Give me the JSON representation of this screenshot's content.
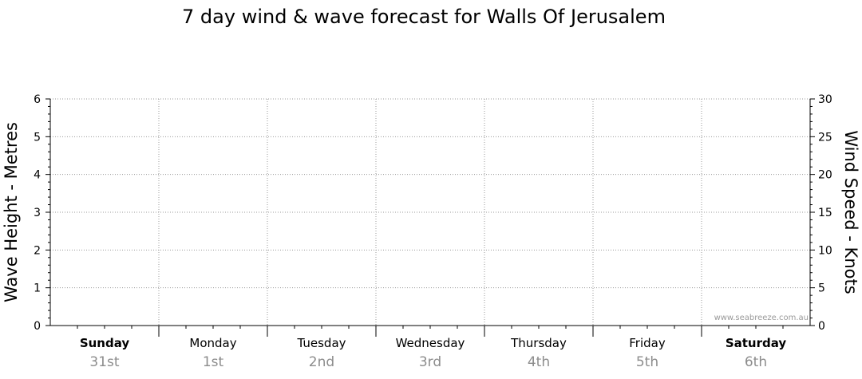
{
  "chart_data": {
    "type": "line",
    "title": "7 day wind & wave forecast for Walls Of Jerusalem",
    "ylabel_left": "Wave Height - Metres",
    "ylabel_right": "Wind Speed - Knots",
    "ylim_left": [
      0,
      6
    ],
    "ylim_right": [
      0,
      30
    ],
    "yticks_left": [
      "0",
      "1",
      "2",
      "3",
      "4",
      "5",
      "6"
    ],
    "yticks_right": [
      "0",
      "5",
      "10",
      "15",
      "20",
      "25",
      "30"
    ],
    "days": [
      {
        "name": "Sunday",
        "date": "31st",
        "bold": true
      },
      {
        "name": "Monday",
        "date": "1st",
        "bold": false
      },
      {
        "name": "Tuesday",
        "date": "2nd",
        "bold": false
      },
      {
        "name": "Wednesday",
        "date": "3rd",
        "bold": false
      },
      {
        "name": "Thursday",
        "date": "4th",
        "bold": false
      },
      {
        "name": "Friday",
        "date": "5th",
        "bold": false
      },
      {
        "name": "Saturday",
        "date": "6th",
        "bold": true
      }
    ],
    "series": [],
    "grid": true,
    "watermark": "www.seabreeze.com.au"
  }
}
